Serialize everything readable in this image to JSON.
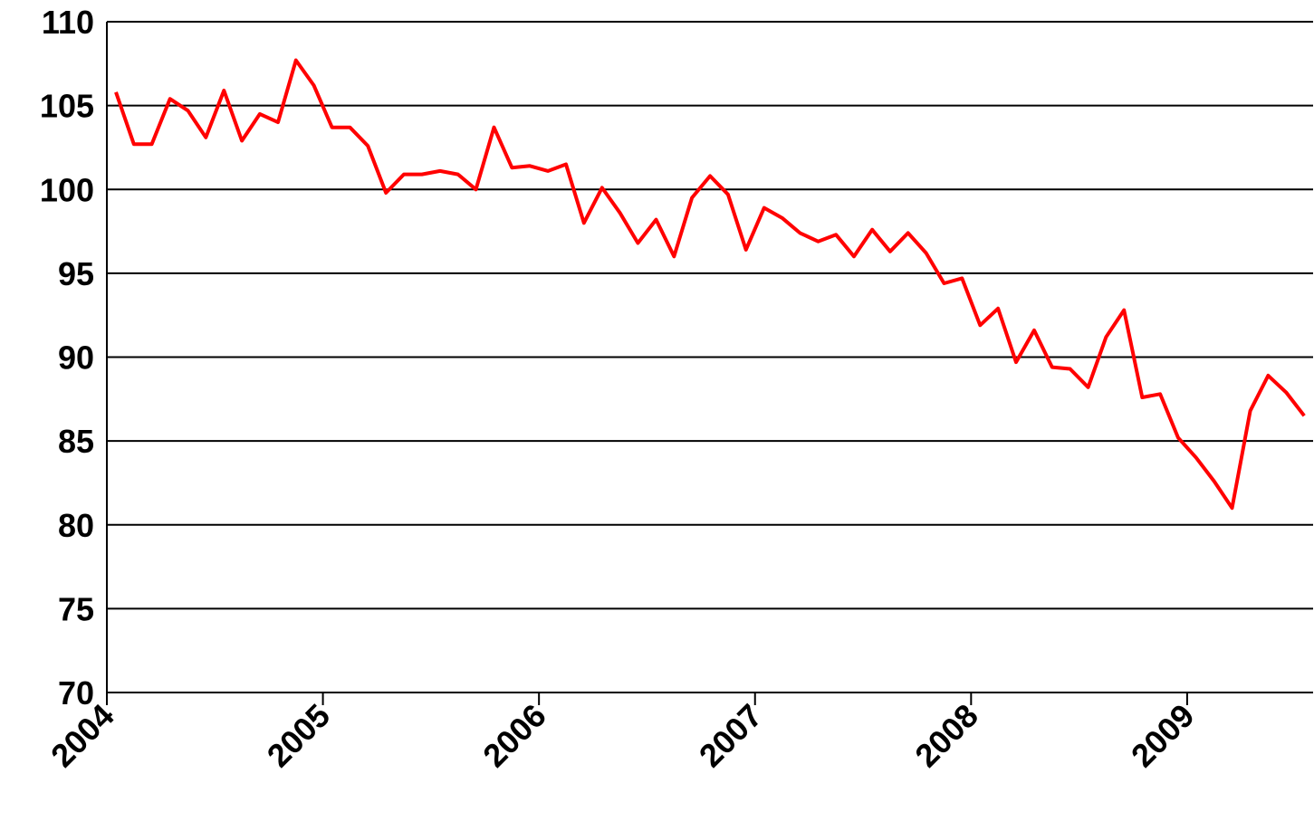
{
  "chart_data": {
    "type": "line",
    "x": [
      2004.042,
      2004.125,
      2004.208,
      2004.292,
      2004.375,
      2004.458,
      2004.542,
      2004.625,
      2004.708,
      2004.792,
      2004.875,
      2004.958,
      2005.042,
      2005.125,
      2005.208,
      2005.292,
      2005.375,
      2005.458,
      2005.542,
      2005.625,
      2005.708,
      2005.792,
      2005.875,
      2005.958,
      2006.042,
      2006.125,
      2006.208,
      2006.292,
      2006.375,
      2006.458,
      2006.542,
      2006.625,
      2006.708,
      2006.792,
      2006.875,
      2006.958,
      2007.042,
      2007.125,
      2007.208,
      2007.292,
      2007.375,
      2007.458,
      2007.542,
      2007.625,
      2007.708,
      2007.792,
      2007.875,
      2007.958,
      2008.042,
      2008.125,
      2008.208,
      2008.292,
      2008.375,
      2008.458,
      2008.542,
      2008.625,
      2008.708,
      2008.792,
      2008.875,
      2008.958,
      2009.042,
      2009.125,
      2009.208,
      2009.292,
      2009.375,
      2009.458,
      2009.542
    ],
    "series": [
      {
        "color": "#ff0000",
        "values": [
          105.8,
          102.7,
          102.7,
          105.4,
          104.7,
          103.1,
          105.9,
          102.9,
          104.5,
          104.0,
          107.7,
          106.2,
          103.7,
          103.7,
          102.6,
          99.8,
          100.9,
          100.9,
          101.1,
          100.9,
          100.0,
          103.7,
          101.3,
          101.4,
          101.1,
          101.5,
          98.0,
          100.1,
          98.6,
          96.8,
          98.2,
          96.0,
          99.5,
          100.8,
          99.7,
          96.4,
          98.9,
          98.3,
          97.4,
          96.9,
          97.3,
          96.0,
          97.6,
          96.3,
          97.4,
          96.2,
          94.4,
          94.7,
          91.9,
          92.9,
          89.7,
          91.6,
          89.4,
          89.3,
          88.2,
          91.2,
          92.8,
          87.6,
          87.8,
          85.2,
          84.0,
          82.6,
          81.0,
          86.8,
          88.9,
          87.9,
          86.5
        ]
      }
    ],
    "xlim": [
      2004,
      2009.583
    ],
    "xticks": [
      2004,
      2005,
      2006,
      2007,
      2008,
      2009
    ],
    "ylim": [
      70,
      110
    ],
    "yticks": [
      70,
      75,
      80,
      85,
      90,
      95,
      100,
      105,
      110
    ],
    "grid": true
  }
}
